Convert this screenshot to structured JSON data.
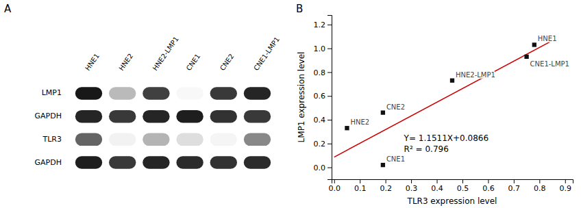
{
  "chart_data": [
    {
      "type": "heatmap",
      "title": "A",
      "categories": [
        "HNE1",
        "HNE2",
        "HNE2-LMP1",
        "CNE1",
        "CNE2",
        "CNE1-LMP1"
      ],
      "rows": [
        "LMP1",
        "GAPDH",
        "TLR3",
        "GAPDH"
      ],
      "cells": [
        [
          0.92,
          0.38,
          0.8,
          0.06,
          0.82,
          0.88
        ],
        [
          0.88,
          0.82,
          0.88,
          0.9,
          0.84,
          0.82
        ],
        [
          0.68,
          0.1,
          0.4,
          0.22,
          0.08,
          0.55
        ],
        [
          0.9,
          0.82,
          0.88,
          0.86,
          0.84,
          0.86
        ]
      ]
    },
    {
      "type": "scatter",
      "title": "B",
      "xlabel": "TLR3 expression level",
      "ylabel": "LMP1 expression level",
      "xlim": [
        -0.01,
        0.93
      ],
      "ylim": [
        -0.1,
        1.28
      ],
      "xticks": [
        {
          "value": 0,
          "label": "0.0"
        },
        0.1,
        0.2,
        0.3,
        0.4,
        0.5,
        0.6,
        0.7,
        0.8,
        0.9
      ],
      "yticks": [
        {
          "value": 0,
          "label": "0.0"
        },
        0.2,
        0.4,
        0.6,
        0.8,
        {
          "value": 1,
          "label": "1.0"
        },
        1.2
      ],
      "grid": false,
      "annotations": [
        "Y= 1.1511X+0.0866",
        "R² = 0.796"
      ],
      "series": [
        {
          "type": "scatter",
          "color": "#111111",
          "marker": "square",
          "x": [
            0.05,
            0.19,
            0.19,
            0.46,
            0.75,
            0.78
          ],
          "values": [
            0.33,
            0.46,
            0.02,
            0.73,
            0.93,
            1.03
          ],
          "labels": [
            "HNE2",
            "CNE2",
            "CNE1",
            "HNE2-LMP1",
            "CNE1-LMP1",
            "HNE1"
          ]
        },
        {
          "type": "line",
          "color": "#cc0000",
          "x": [
            0.0,
            0.84
          ],
          "values": [
            0.0866,
            1.053524
          ]
        }
      ]
    }
  ]
}
